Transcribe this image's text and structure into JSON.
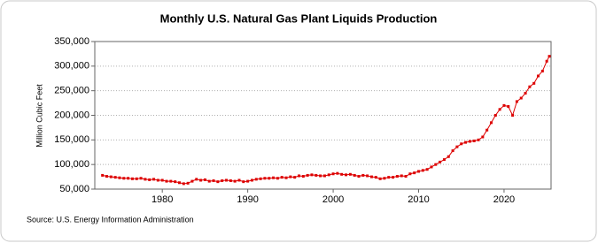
{
  "chart_data": {
    "type": "line",
    "title": "Monthly U.S. Natural Gas Plant Liquids Production",
    "ylabel": "Million Cubic Feet",
    "source": "Source: U.S. Energy Information Administration",
    "xlim": [
      1972.1,
      2025.5
    ],
    "xticks": [
      1980,
      1990,
      2000,
      2010,
      2020
    ],
    "ylim": [
      50000,
      350000
    ],
    "yticks": [
      {
        "value": 50000,
        "label": "50,000"
      },
      {
        "value": 100000,
        "label": "100,000"
      },
      {
        "value": 150000,
        "label": "150,000"
      },
      {
        "value": 200000,
        "label": "200,000"
      },
      {
        "value": 250000,
        "label": "250,000"
      },
      {
        "value": 300000,
        "label": "300,000"
      },
      {
        "value": 350000,
        "label": "350,000"
      }
    ],
    "grid": true,
    "x": [
      1973.0,
      1973.5,
      1974.0,
      1974.5,
      1975.0,
      1975.5,
      1976.0,
      1976.5,
      1977.0,
      1977.5,
      1978.0,
      1978.5,
      1979.0,
      1979.5,
      1980.0,
      1980.5,
      1981.0,
      1981.5,
      1982.0,
      1982.5,
      1983.0,
      1983.5,
      1984.0,
      1984.5,
      1985.0,
      1985.5,
      1986.0,
      1986.5,
      1987.0,
      1987.5,
      1988.0,
      1988.5,
      1989.0,
      1989.5,
      1990.0,
      1990.5,
      1991.0,
      1991.5,
      1992.0,
      1992.5,
      1993.0,
      1993.5,
      1994.0,
      1994.5,
      1995.0,
      1995.5,
      1996.0,
      1996.5,
      1997.0,
      1997.5,
      1998.0,
      1998.5,
      1999.0,
      1999.5,
      2000.0,
      2000.5,
      2001.0,
      2001.5,
      2002.0,
      2002.5,
      2003.0,
      2003.5,
      2004.0,
      2004.5,
      2005.0,
      2005.5,
      2006.0,
      2006.5,
      2007.0,
      2007.5,
      2008.0,
      2008.5,
      2009.0,
      2009.5,
      2010.0,
      2010.5,
      2011.0,
      2011.5,
      2012.0,
      2012.5,
      2013.0,
      2013.5,
      2014.0,
      2014.5,
      2015.0,
      2015.5,
      2016.0,
      2016.5,
      2017.0,
      2017.5,
      2018.0,
      2018.5,
      2019.0,
      2019.5,
      2020.0,
      2020.5,
      2021.0,
      2021.5,
      2022.0,
      2022.5,
      2023.0,
      2023.5,
      2024.0,
      2024.5,
      2025.0,
      2025.3
    ],
    "series": [
      {
        "color": "#dd0000",
        "values": [
          78000,
          76000,
          75000,
          74000,
          73000,
          72000,
          72000,
          71000,
          71000,
          72000,
          70000,
          69000,
          70000,
          68000,
          68000,
          66000,
          66000,
          65000,
          63000,
          61000,
          62000,
          66000,
          70000,
          68000,
          69000,
          66000,
          67000,
          65000,
          67000,
          68000,
          67000,
          66000,
          68000,
          65000,
          66000,
          68000,
          70000,
          71000,
          72000,
          72000,
          73000,
          72000,
          74000,
          73000,
          75000,
          74000,
          77000,
          76000,
          78000,
          79000,
          78000,
          77000,
          77000,
          79000,
          81000,
          82000,
          80000,
          79000,
          80000,
          78000,
          76000,
          78000,
          77000,
          75000,
          74000,
          71000,
          72000,
          74000,
          74000,
          76000,
          77000,
          76000,
          81000,
          83000,
          86000,
          88000,
          90000,
          95000,
          100000,
          105000,
          110000,
          116000,
          128000,
          136000,
          142000,
          145000,
          147000,
          148000,
          150000,
          156000,
          170000,
          185000,
          200000,
          212000,
          220000,
          218000,
          200000,
          228000,
          235000,
          245000,
          258000,
          265000,
          280000,
          290000,
          310000,
          320000
        ]
      }
    ]
  }
}
